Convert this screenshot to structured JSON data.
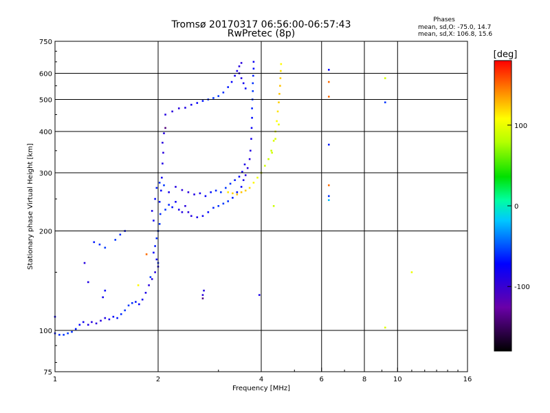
{
  "chart_data": {
    "type": "scatter",
    "title": "Tromsø 20170317 06:56:00-06:57:43",
    "subtitle": "RwPretec (8p)",
    "stats": {
      "header": "Phases",
      "line_o": "mean, sd,O: -75.0, 14.7",
      "line_x": "mean, sd,X: 106.8, 15.6"
    },
    "xlabel": "Frequency [MHz]",
    "ylabel": "Stationary phase Virtual Height [km]",
    "x_scale": "log",
    "y_scale": "log",
    "xlim": [
      1,
      16
    ],
    "ylim": [
      75,
      750
    ],
    "x_ticks": [
      {
        "value": 1,
        "label": "1"
      },
      {
        "value": 2,
        "label": "2"
      },
      {
        "value": 4,
        "label": "4"
      },
      {
        "value": 6,
        "label": "6"
      },
      {
        "value": 8,
        "label": "8"
      },
      {
        "value": 10,
        "label": "10"
      },
      {
        "value": 16,
        "label": "16"
      }
    ],
    "y_ticks": [
      {
        "value": 75,
        "label": "75"
      },
      {
        "value": 100,
        "label": "100"
      },
      {
        "value": 200,
        "label": "200"
      },
      {
        "value": 300,
        "label": "300"
      },
      {
        "value": 400,
        "label": "400"
      },
      {
        "value": 500,
        "label": "500"
      },
      {
        "value": 600,
        "label": "600"
      },
      {
        "value": 750,
        "label": "750"
      }
    ],
    "x_grid": [
      2,
      4,
      6,
      8,
      10
    ],
    "y_grid": [
      100,
      200,
      300,
      400,
      500,
      600
    ],
    "grid": true,
    "colorbar": {
      "label": "[deg]",
      "range": [
        -180,
        180
      ],
      "ticks": [
        {
          "value": 100,
          "label": "100"
        },
        {
          "value": 0,
          "label": "0"
        },
        {
          "value": -100,
          "label": "-100"
        }
      ]
    },
    "series": [
      {
        "mode": "O",
        "phase_mean": -75,
        "phase_sd": 14.7,
        "points": [
          [
            1.0,
            98
          ],
          [
            1.03,
            97
          ],
          [
            1.06,
            97
          ],
          [
            1.09,
            98
          ],
          [
            1.12,
            99
          ],
          [
            1.15,
            101
          ],
          [
            1.18,
            104
          ],
          [
            1.21,
            106
          ],
          [
            1.25,
            104
          ],
          [
            1.28,
            106
          ],
          [
            1.32,
            105
          ],
          [
            1.36,
            107
          ],
          [
            1.4,
            109
          ],
          [
            1.44,
            108
          ],
          [
            1.48,
            110
          ],
          [
            1.52,
            109
          ],
          [
            1.56,
            112
          ],
          [
            1.6,
            115
          ],
          [
            1.64,
            119
          ],
          [
            1.68,
            121
          ],
          [
            1.72,
            122
          ],
          [
            1.76,
            120
          ],
          [
            1.8,
            124
          ],
          [
            1.84,
            130
          ],
          [
            1.88,
            137
          ],
          [
            1.92,
            143
          ],
          [
            1.96,
            150
          ],
          [
            2.0,
            156
          ],
          [
            1.98,
            164
          ],
          [
            1.94,
            172
          ],
          [
            1.96,
            180
          ],
          [
            1.98,
            190
          ],
          [
            2.0,
            200
          ],
          [
            2.02,
            210
          ],
          [
            2.03,
            225
          ],
          [
            2.02,
            245
          ],
          [
            2.04,
            265
          ],
          [
            2.05,
            290
          ],
          [
            2.06,
            320
          ],
          [
            2.07,
            345
          ],
          [
            2.06,
            370
          ],
          [
            2.08,
            395
          ],
          [
            1.92,
            230
          ],
          [
            1.94,
            215
          ],
          [
            1.96,
            250
          ],
          [
            1.98,
            270
          ],
          [
            2.02,
            280
          ],
          [
            2.08,
            275
          ],
          [
            2.1,
            232
          ],
          [
            2.15,
            240
          ],
          [
            2.2,
            236
          ],
          [
            2.25,
            245
          ],
          [
            2.3,
            232
          ],
          [
            2.35,
            228
          ],
          [
            2.4,
            238
          ],
          [
            2.45,
            228
          ],
          [
            2.5,
            222
          ],
          [
            2.6,
            220
          ],
          [
            2.7,
            222
          ],
          [
            2.8,
            228
          ],
          [
            2.9,
            235
          ],
          [
            3.0,
            238
          ],
          [
            3.1,
            242
          ],
          [
            3.2,
            246
          ],
          [
            3.3,
            252
          ],
          [
            3.4,
            262
          ],
          [
            3.5,
            272
          ],
          [
            3.55,
            285
          ],
          [
            3.6,
            295
          ],
          [
            3.65,
            310
          ],
          [
            3.7,
            330
          ],
          [
            3.72,
            350
          ],
          [
            3.74,
            380
          ],
          [
            3.75,
            410
          ],
          [
            3.76,
            440
          ],
          [
            3.76,
            470
          ],
          [
            3.77,
            500
          ],
          [
            3.78,
            530
          ],
          [
            3.78,
            560
          ],
          [
            3.79,
            590
          ],
          [
            3.8,
            620
          ],
          [
            3.8,
            650
          ],
          [
            2.15,
            262
          ],
          [
            2.25,
            272
          ],
          [
            2.35,
            266
          ],
          [
            2.45,
            262
          ],
          [
            2.55,
            258
          ],
          [
            2.65,
            260
          ],
          [
            2.75,
            255
          ],
          [
            2.85,
            262
          ],
          [
            2.95,
            265
          ],
          [
            3.05,
            262
          ],
          [
            3.15,
            270
          ],
          [
            3.25,
            278
          ],
          [
            3.35,
            285
          ],
          [
            3.45,
            292
          ],
          [
            3.52,
            302
          ],
          [
            3.58,
            318
          ],
          [
            2.1,
            450
          ],
          [
            2.2,
            460
          ],
          [
            2.3,
            470
          ],
          [
            2.4,
            472
          ],
          [
            2.5,
            482
          ],
          [
            2.6,
            488
          ],
          [
            2.7,
            495
          ],
          [
            2.8,
            500
          ],
          [
            2.9,
            505
          ],
          [
            3.0,
            512
          ],
          [
            3.1,
            525
          ],
          [
            3.2,
            545
          ],
          [
            3.28,
            565
          ],
          [
            3.35,
            590
          ],
          [
            3.4,
            610
          ],
          [
            3.45,
            630
          ],
          [
            3.5,
            645
          ],
          [
            3.45,
            600
          ],
          [
            3.5,
            580
          ],
          [
            3.55,
            560
          ],
          [
            3.6,
            540
          ],
          [
            1.3,
            185
          ],
          [
            1.35,
            182
          ],
          [
            1.4,
            178
          ],
          [
            1.5,
            188
          ],
          [
            1.55,
            195
          ],
          [
            1.6,
            200
          ],
          [
            1.4,
            132
          ],
          [
            1.38,
            126
          ],
          [
            1.25,
            140
          ],
          [
            1.22,
            160
          ],
          [
            2.7,
            128
          ],
          [
            2.72,
            132
          ],
          [
            3.95,
            128
          ],
          [
            1.0,
            110
          ],
          [
            6.3,
            615
          ],
          [
            6.3,
            365
          ],
          [
            6.3,
            255
          ],
          [
            9.2,
            490
          ],
          [
            1.9,
            145
          ],
          [
            2.0,
            160
          ]
        ]
      },
      {
        "mode": "X",
        "phase_mean": 106.8,
        "phase_sd": 15.6,
        "points": [
          [
            3.2,
            262
          ],
          [
            3.3,
            260
          ],
          [
            3.4,
            258
          ],
          [
            3.5,
            262
          ],
          [
            3.6,
            265
          ],
          [
            3.7,
            270
          ],
          [
            3.8,
            280
          ],
          [
            3.9,
            290
          ],
          [
            4.0,
            300
          ],
          [
            4.1,
            315
          ],
          [
            4.2,
            330
          ],
          [
            4.28,
            350
          ],
          [
            4.35,
            375
          ],
          [
            4.4,
            400
          ],
          [
            4.44,
            430
          ],
          [
            4.47,
            460
          ],
          [
            4.5,
            490
          ],
          [
            4.52,
            520
          ],
          [
            4.54,
            550
          ],
          [
            4.55,
            580
          ],
          [
            4.56,
            610
          ],
          [
            4.57,
            640
          ],
          [
            4.5,
            420
          ],
          [
            4.4,
            380
          ],
          [
            4.3,
            345
          ],
          [
            4.35,
            238
          ],
          [
            9.2,
            580
          ],
          [
            9.2,
            102
          ],
          [
            11.0,
            150
          ],
          [
            1.75,
            137
          ]
        ]
      },
      {
        "mode": "other",
        "phase_mean": 150,
        "phase_sd": 0,
        "points": [
          [
            6.3,
            565
          ],
          [
            6.3,
            510
          ],
          [
            6.3,
            275
          ],
          [
            1.85,
            170
          ]
        ]
      },
      {
        "mode": "other",
        "phase_mean": -20,
        "phase_sd": 0,
        "points": [
          [
            6.3,
            248
          ]
        ]
      },
      {
        "mode": "other",
        "phase_mean": -140,
        "phase_sd": 0,
        "points": [
          [
            2.7,
            125
          ],
          [
            2.1,
            410
          ]
        ]
      }
    ]
  }
}
